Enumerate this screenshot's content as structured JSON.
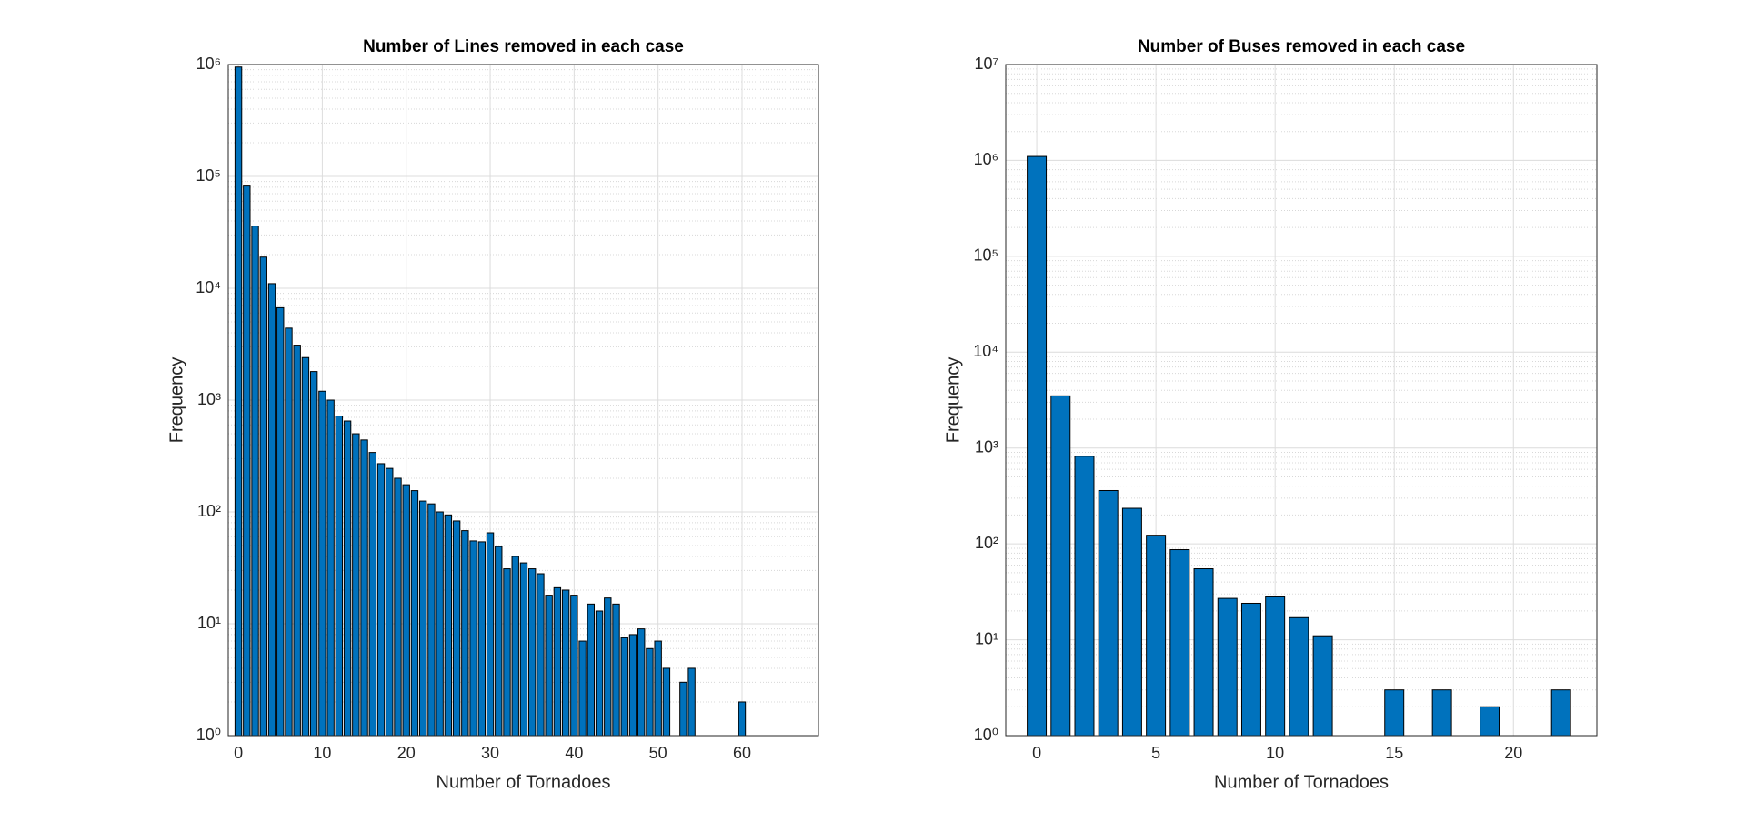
{
  "chart_data": [
    {
      "type": "bar",
      "title": "Number of Lines removed in each case",
      "xlabel": "Number of Tornadoes",
      "ylabel": "Frequency",
      "x": [
        0,
        1,
        2,
        3,
        4,
        5,
        6,
        7,
        8,
        9,
        10,
        11,
        12,
        13,
        14,
        15,
        16,
        17,
        18,
        19,
        20,
        21,
        22,
        23,
        24,
        25,
        26,
        27,
        28,
        29,
        30,
        31,
        32,
        33,
        34,
        35,
        36,
        37,
        38,
        39,
        40,
        41,
        42,
        43,
        44,
        45,
        46,
        47,
        48,
        49,
        50,
        51,
        53,
        54,
        60
      ],
      "values": [
        950000,
        82000,
        36000,
        19000,
        11000,
        6700,
        4400,
        3100,
        2400,
        1800,
        1200,
        1000,
        720,
        650,
        500,
        440,
        340,
        270,
        245,
        200,
        175,
        155,
        125,
        118,
        100,
        94,
        83,
        68,
        55,
        54,
        65,
        49,
        31,
        40,
        35,
        31,
        28,
        18,
        21,
        20,
        18,
        7,
        15,
        13,
        17,
        15,
        7.5,
        8,
        9,
        6,
        7,
        4,
        3,
        4,
        2
      ],
      "color": "#0072BD",
      "log_y": true,
      "grid": true,
      "minor_grid": true,
      "xlim": [
        -1.2,
        69.1
      ],
      "xticks": [
        0,
        10,
        20,
        30,
        40,
        50,
        60
      ],
      "ylim": [
        1,
        1000000
      ],
      "yticks": [
        {
          "value": 1,
          "label": "10⁰"
        },
        {
          "value": 10,
          "label": "10¹"
        },
        {
          "value": 100,
          "label": "10²"
        },
        {
          "value": 1000,
          "label": "10³"
        },
        {
          "value": 10000,
          "label": "10⁴"
        },
        {
          "value": 100000,
          "label": "10⁵"
        },
        {
          "value": 1000000,
          "label": "10⁶"
        }
      ]
    },
    {
      "type": "bar",
      "title": "Number of Buses removed in each case",
      "xlabel": "Number of Tornadoes",
      "ylabel": "Frequency",
      "x": [
        0,
        1,
        2,
        3,
        4,
        5,
        6,
        7,
        8,
        9,
        10,
        11,
        12,
        15,
        17,
        19,
        22
      ],
      "values": [
        1100000,
        3500,
        820,
        360,
        235,
        123,
        87,
        55,
        27,
        24,
        28,
        17,
        11,
        3,
        3,
        2,
        3
      ],
      "color": "#0072BD",
      "log_y": true,
      "grid": true,
      "minor_grid": true,
      "xlim": [
        -1.3,
        23.5
      ],
      "xticks": [
        0,
        5,
        10,
        15,
        20
      ],
      "ylim": [
        1,
        10000000
      ],
      "yticks": [
        {
          "value": 1,
          "label": "10⁰"
        },
        {
          "value": 10,
          "label": "10¹"
        },
        {
          "value": 100,
          "label": "10²"
        },
        {
          "value": 1000,
          "label": "10³"
        },
        {
          "value": 10000,
          "label": "10⁴"
        },
        {
          "value": 100000,
          "label": "10⁵"
        },
        {
          "value": 1000000,
          "label": "10⁶"
        },
        {
          "value": 10000000,
          "label": "10⁷"
        }
      ]
    }
  ]
}
